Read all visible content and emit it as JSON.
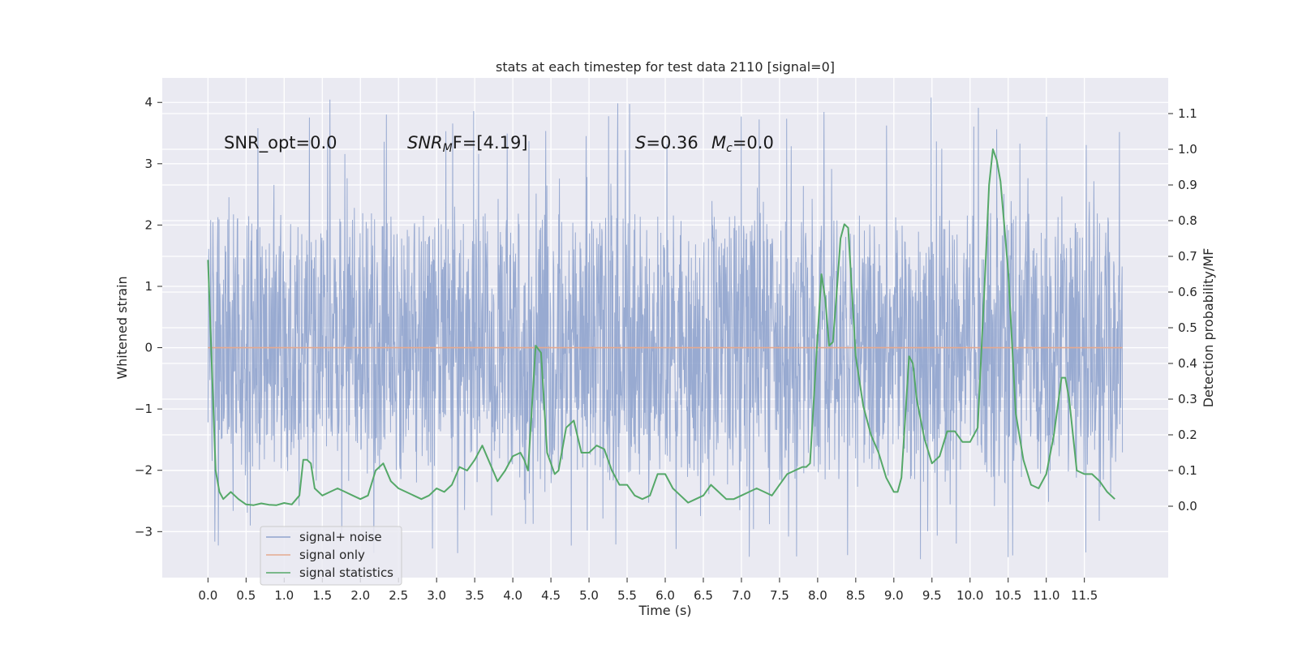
{
  "chart_data": {
    "type": "line",
    "title": "stats at each timestep for test data 2110 [signal=0]",
    "xlabel": "Time (s)",
    "ylabel_left": "Whitened strain",
    "ylabel_right": "Detection probability/MF",
    "xlim": [
      -0.6,
      12.6
    ],
    "ylim_left": [
      -3.75,
      4.4
    ],
    "ylim_right": [
      -0.2,
      1.2
    ],
    "x_ticks": [
      0.0,
      0.5,
      1.0,
      1.5,
      2.0,
      2.5,
      3.0,
      3.5,
      4.0,
      4.5,
      5.0,
      5.5,
      6.0,
      6.5,
      7.0,
      7.5,
      8.0,
      8.5,
      9.0,
      9.5,
      10.0,
      10.5,
      11.0,
      11.5
    ],
    "x_tick_labels": [
      "0.0",
      "0.5",
      "1.0",
      "1.5",
      "2.0",
      "2.5",
      "3.0",
      "3.5",
      "4.0",
      "4.5",
      "5.0",
      "5.5",
      "6.0",
      "6.5",
      "7.0",
      "7.5",
      "8.0",
      "8.5",
      "9.0",
      "9.5",
      "10.0",
      "10.5",
      "11.0",
      "11.5"
    ],
    "y_left_ticks": [
      -3,
      -2,
      -1,
      0,
      1,
      2,
      3,
      4
    ],
    "y_left_tick_labels": [
      "−3",
      "−2",
      "−1",
      "0",
      "1",
      "2",
      "3",
      "4"
    ],
    "y_right_ticks": [
      0.0,
      0.1,
      0.2,
      0.3,
      0.4,
      0.5,
      0.6,
      0.7,
      0.8,
      0.9,
      1.0,
      1.1
    ],
    "y_right_tick_labels": [
      "0.0",
      "0.1",
      "0.2",
      "0.3",
      "0.4",
      "0.5",
      "0.6",
      "0.7",
      "0.8",
      "0.9",
      "1.0",
      "1.1"
    ],
    "grid": true,
    "legend_position": "lower-left",
    "annotations": {
      "snr_opt": "SNR_opt=0.0",
      "snr_mf_main": "SNR",
      "snr_mf_sub": "M",
      "snr_mf_rest": "F=[4.19]",
      "s_main": "S",
      "s_rest": "=0.36",
      "mc_main": "M",
      "mc_sub": "c",
      "mc_rest": "=0.0"
    },
    "series": [
      {
        "name": "signal+ noise",
        "axis": "left",
        "color": "#8fa3cd",
        "kind": "noise",
        "x_range": [
          0.0,
          12.0
        ],
        "core_amplitude": 1.5,
        "peak_range": [
          -3.45,
          4.1
        ]
      },
      {
        "name": "signal only",
        "axis": "left",
        "color": "#e5a98f",
        "x": [
          0.0,
          12.0
        ],
        "y": [
          0.0,
          0.0
        ]
      },
      {
        "name": "signal statistics",
        "axis": "right",
        "color": "#55a868",
        "x": [
          0.0,
          0.1,
          0.15,
          0.2,
          0.3,
          0.4,
          0.5,
          0.6,
          0.7,
          0.8,
          0.9,
          1.0,
          1.1,
          1.2,
          1.25,
          1.3,
          1.35,
          1.4,
          1.5,
          1.6,
          1.7,
          1.8,
          1.9,
          2.0,
          2.1,
          2.2,
          2.3,
          2.4,
          2.5,
          2.6,
          2.7,
          2.8,
          2.9,
          3.0,
          3.1,
          3.2,
          3.3,
          3.4,
          3.5,
          3.6,
          3.7,
          3.8,
          3.9,
          4.0,
          4.1,
          4.15,
          4.2,
          4.3,
          4.37,
          4.45,
          4.55,
          4.6,
          4.7,
          4.8,
          4.9,
          5.0,
          5.1,
          5.2,
          5.3,
          5.4,
          5.5,
          5.6,
          5.7,
          5.8,
          5.9,
          6.0,
          6.1,
          6.2,
          6.3,
          6.4,
          6.5,
          6.6,
          6.7,
          6.8,
          6.9,
          7.0,
          7.1,
          7.2,
          7.3,
          7.4,
          7.5,
          7.6,
          7.7,
          7.8,
          7.85,
          7.9,
          8.0,
          8.05,
          8.1,
          8.15,
          8.2,
          8.25,
          8.3,
          8.35,
          8.4,
          8.45,
          8.5,
          8.6,
          8.7,
          8.8,
          8.9,
          9.0,
          9.05,
          9.1,
          9.2,
          9.25,
          9.3,
          9.4,
          9.5,
          9.6,
          9.7,
          9.8,
          9.9,
          10.0,
          10.1,
          10.2,
          10.25,
          10.3,
          10.35,
          10.4,
          10.5,
          10.6,
          10.7,
          10.8,
          10.9,
          11.0,
          11.1,
          11.2,
          11.25,
          11.3,
          11.4,
          11.5,
          11.6,
          11.7,
          11.8,
          11.9,
          12.0
        ],
        "y": [
          0.69,
          0.1,
          0.04,
          0.02,
          0.04,
          0.02,
          0.005,
          0.003,
          0.008,
          0.004,
          0.003,
          0.009,
          0.005,
          0.03,
          0.13,
          0.13,
          0.12,
          0.05,
          0.03,
          0.04,
          0.05,
          0.04,
          0.03,
          0.02,
          0.03,
          0.1,
          0.12,
          0.07,
          0.05,
          0.04,
          0.03,
          0.02,
          0.03,
          0.05,
          0.04,
          0.06,
          0.11,
          0.1,
          0.13,
          0.17,
          0.12,
          0.07,
          0.1,
          0.14,
          0.15,
          0.13,
          0.1,
          0.45,
          0.43,
          0.15,
          0.09,
          0.1,
          0.22,
          0.24,
          0.15,
          0.15,
          0.17,
          0.16,
          0.1,
          0.06,
          0.06,
          0.03,
          0.02,
          0.03,
          0.09,
          0.09,
          0.05,
          0.03,
          0.01,
          0.02,
          0.03,
          0.06,
          0.04,
          0.02,
          0.02,
          0.03,
          0.04,
          0.05,
          0.04,
          0.03,
          0.06,
          0.09,
          0.1,
          0.11,
          0.11,
          0.12,
          0.48,
          0.65,
          0.58,
          0.45,
          0.46,
          0.6,
          0.75,
          0.79,
          0.78,
          0.6,
          0.42,
          0.28,
          0.2,
          0.15,
          0.08,
          0.04,
          0.04,
          0.08,
          0.42,
          0.4,
          0.3,
          0.19,
          0.12,
          0.14,
          0.21,
          0.21,
          0.18,
          0.18,
          0.22,
          0.66,
          0.9,
          1.0,
          0.97,
          0.91,
          0.66,
          0.26,
          0.13,
          0.06,
          0.05,
          0.09,
          0.2,
          0.36,
          0.36,
          0.3,
          0.1,
          0.09,
          0.09,
          0.07,
          0.04,
          0.02,
          null
        ]
      }
    ]
  }
}
